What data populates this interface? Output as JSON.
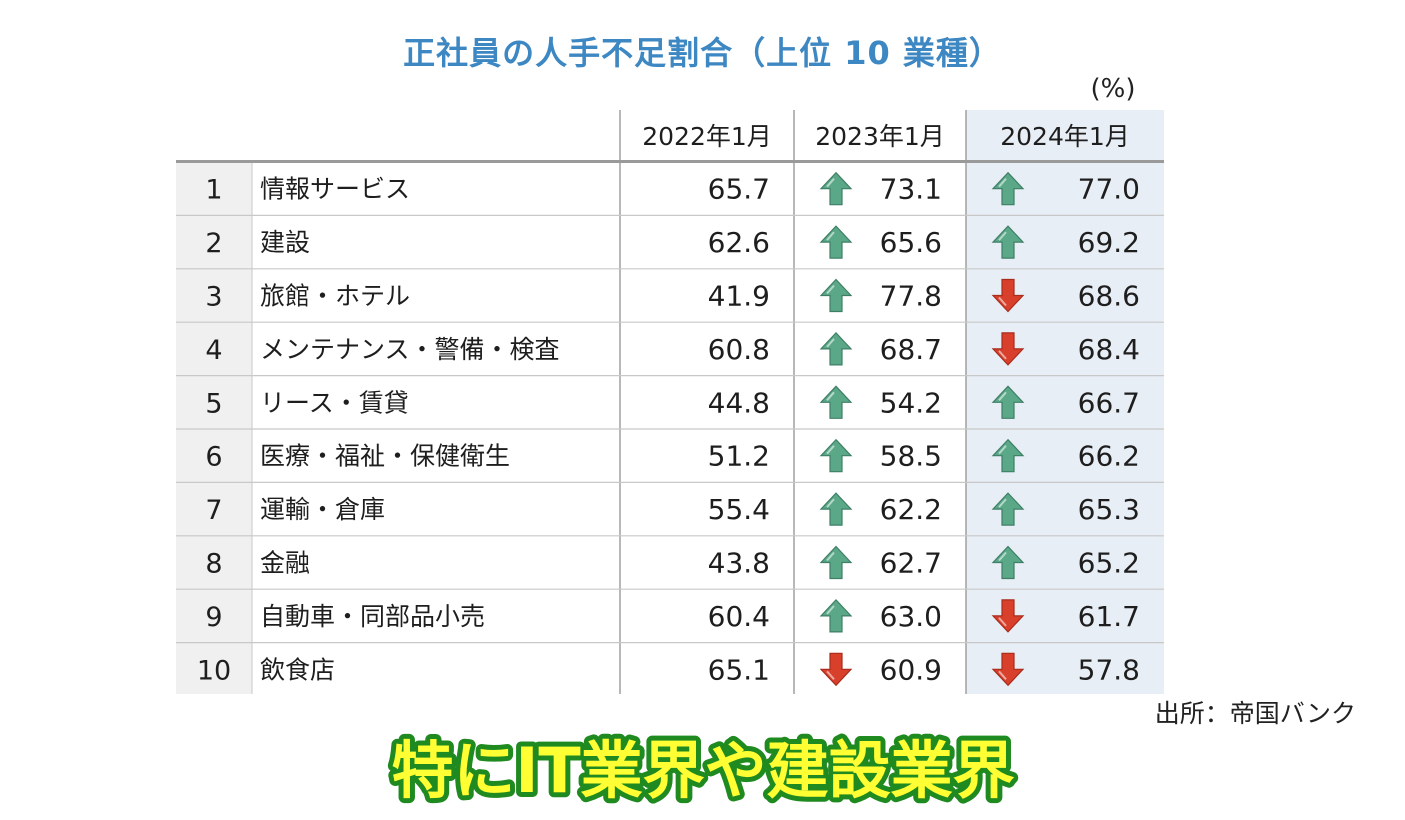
{
  "title": "正社員の人手不足割合（上位 10 業種）",
  "unit_label": "(%)",
  "source_label": "出所：帝国バンク",
  "caption": "特にIT業界や建設業界",
  "colors": {
    "title": "#3d87c2",
    "up_arrow": "#5aa888",
    "down_arrow": "#d8402b",
    "highlight_col": "#e8eef5",
    "rank_bg": "#f0f0f0",
    "caption_fill": "#ffff33",
    "caption_stroke": "#1f8a1f"
  },
  "icons": {
    "up": "up-arrow-icon",
    "down": "down-arrow-icon"
  },
  "chart_data": {
    "type": "table",
    "columns": [
      "2022年1月",
      "2023年1月",
      "2024年1月"
    ],
    "highlight_column": "2024年1月",
    "rows": [
      {
        "rank": "1",
        "industry": "情報サービス",
        "values": [
          "65.7",
          "73.1",
          "77.0"
        ],
        "trend": [
          "",
          "up",
          "up"
        ]
      },
      {
        "rank": "2",
        "industry": "建設",
        "values": [
          "62.6",
          "65.6",
          "69.2"
        ],
        "trend": [
          "",
          "up",
          "up"
        ]
      },
      {
        "rank": "3",
        "industry": "旅館・ホテル",
        "values": [
          "41.9",
          "77.8",
          "68.6"
        ],
        "trend": [
          "",
          "up",
          "down"
        ]
      },
      {
        "rank": "4",
        "industry": "メンテナンス・警備・検査",
        "values": [
          "60.8",
          "68.7",
          "68.4"
        ],
        "trend": [
          "",
          "up",
          "down"
        ]
      },
      {
        "rank": "5",
        "industry": "リース・賃貸",
        "values": [
          "44.8",
          "54.2",
          "66.7"
        ],
        "trend": [
          "",
          "up",
          "up"
        ]
      },
      {
        "rank": "6",
        "industry": "医療・福祉・保健衛生",
        "values": [
          "51.2",
          "58.5",
          "66.2"
        ],
        "trend": [
          "",
          "up",
          "up"
        ]
      },
      {
        "rank": "7",
        "industry": "運輸・倉庫",
        "values": [
          "55.4",
          "62.2",
          "65.3"
        ],
        "trend": [
          "",
          "up",
          "up"
        ]
      },
      {
        "rank": "8",
        "industry": "金融",
        "values": [
          "43.8",
          "62.7",
          "65.2"
        ],
        "trend": [
          "",
          "up",
          "up"
        ]
      },
      {
        "rank": "9",
        "industry": "自動車・同部品小売",
        "values": [
          "60.4",
          "63.0",
          "61.7"
        ],
        "trend": [
          "",
          "up",
          "down"
        ]
      },
      {
        "rank": "10",
        "industry": "飲食店",
        "values": [
          "65.1",
          "60.9",
          "57.8"
        ],
        "trend": [
          "",
          "down",
          "down"
        ]
      }
    ]
  }
}
